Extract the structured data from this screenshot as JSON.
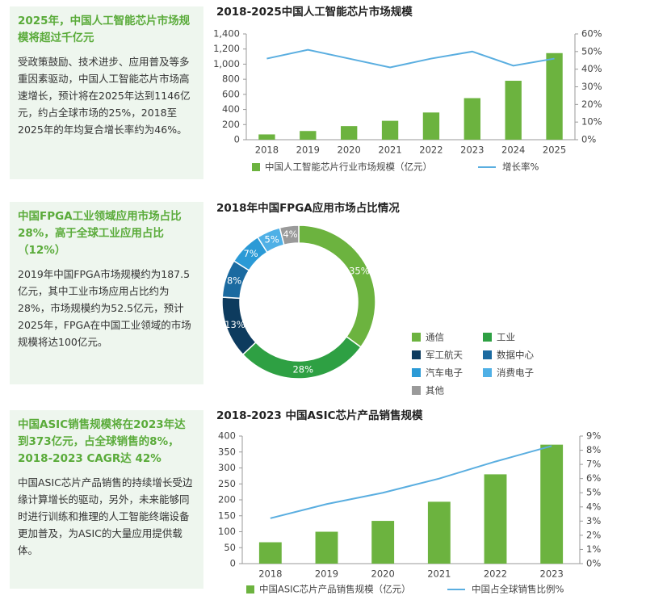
{
  "sidebars": [
    {
      "heading": "2025年，中国人工智能芯片市场规模将超过千亿元",
      "body": "受政策鼓励、技术进步、应用普及等多重因素驱动，中国人工智能芯片市场高速增长，预计将在2025年达到1146亿元，约占全球市场的25%，2018至2025年的年均复合增长率约为46%。"
    },
    {
      "heading": "中国FPGA工业领域应用市场占比28%，高于全球工业应用占比（12%）",
      "body": "2019年中国FPGA市场规模约为187.5亿元，其中工业市场应用占比约为28%，市场规模约为52.5亿元，预计2025年，FPGA在中国工业领域的市场规模将达100亿元。"
    },
    {
      "heading": "中国ASIC销售规模将在2023年达到373亿元，占全球销售的8%，2018-2023 CAGR达 42%",
      "body": "中国ASIC芯片产品销售的持续增长受边缘计算增长的驱动，另外，未来能够同时进行训练和推理的人工智能终端设备更加普及，为ASIC的大量应用提供载体。"
    }
  ],
  "chart_data": [
    {
      "type": "bar",
      "title": "2018-2025中国人工智能芯片市场规模",
      "categories": [
        "2018",
        "2019",
        "2020",
        "2021",
        "2022",
        "2023",
        "2024",
        "2025"
      ],
      "series": [
        {
          "name": "中国人工智能芯片行业市场规模（亿元）",
          "type": "bar",
          "color": "#6cb33f",
          "values": [
            70,
            115,
            180,
            250,
            360,
            550,
            780,
            1146
          ]
        },
        {
          "name": "增长率%",
          "type": "line",
          "axis": "y2",
          "color": "#5aaee0",
          "values": [
            46,
            51,
            46,
            41,
            46,
            50,
            42,
            46
          ]
        }
      ],
      "ylim": [
        0,
        1400
      ],
      "yticks": [
        0,
        200,
        400,
        600,
        800,
        {
          "value": 1000,
          "label": "1,000"
        },
        {
          "value": 1200,
          "label": "1,200"
        },
        {
          "value": 1400,
          "label": "1,400"
        }
      ],
      "y2lim": [
        0,
        60
      ],
      "y2ticks": [
        {
          "value": 0,
          "label": "0%"
        },
        {
          "value": 10,
          "label": "10%"
        },
        {
          "value": 20,
          "label": "20%"
        },
        {
          "value": 30,
          "label": "30%"
        },
        {
          "value": 40,
          "label": "40%"
        },
        {
          "value": 50,
          "label": "50%"
        },
        {
          "value": 60,
          "label": "60%"
        }
      ],
      "grid": false
    },
    {
      "type": "pie",
      "title": "2018年中国FPGA应用市场占比情况",
      "categories": [
        "通信",
        "工业",
        "军工航天",
        "数据中心",
        "汽车电子",
        "消费电子",
        "其他"
      ],
      "values": [
        35,
        28,
        13,
        8,
        7,
        5,
        4
      ],
      "value_labels": [
        "35%",
        "28%",
        "13%",
        "8%",
        "7%",
        "5%",
        "4%"
      ],
      "colors": [
        "#6cb33f",
        "#2ea043",
        "#0d3b5e",
        "#1b6aa0",
        "#2b9ad6",
        "#4fb0e6",
        "#9a9a9a"
      ]
    },
    {
      "type": "bar",
      "title": "2018-2023 中国ASIC芯片产品销售规模",
      "categories": [
        "2018",
        "2019",
        "2020",
        "2021",
        "2022",
        "2023"
      ],
      "series": [
        {
          "name": "中国ASIC芯片产品销售规模（亿元）",
          "type": "bar",
          "color": "#6cb33f",
          "values": [
            67,
            100,
            134,
            194,
            280,
            373
          ]
        },
        {
          "name": "中国占全球销售比例%",
          "type": "line",
          "axis": "y2",
          "color": "#5aaee0",
          "values": [
            3.2,
            4.2,
            5.0,
            6.0,
            7.2,
            8.3
          ]
        }
      ],
      "ylim": [
        0,
        400
      ],
      "yticks": [
        0,
        50,
        100,
        150,
        200,
        250,
        300,
        350,
        400
      ],
      "y2lim": [
        0,
        9
      ],
      "y2ticks": [
        {
          "value": 0,
          "label": "0%"
        },
        {
          "value": 1,
          "label": "1%"
        },
        {
          "value": 2,
          "label": "2%"
        },
        {
          "value": 3,
          "label": "3%"
        },
        {
          "value": 4,
          "label": "4%"
        },
        {
          "value": 5,
          "label": "5%"
        },
        {
          "value": 6,
          "label": "6%"
        },
        {
          "value": 7,
          "label": "7%"
        },
        {
          "value": 8,
          "label": "8%"
        },
        {
          "value": 9,
          "label": "9%"
        }
      ],
      "grid": false
    }
  ]
}
